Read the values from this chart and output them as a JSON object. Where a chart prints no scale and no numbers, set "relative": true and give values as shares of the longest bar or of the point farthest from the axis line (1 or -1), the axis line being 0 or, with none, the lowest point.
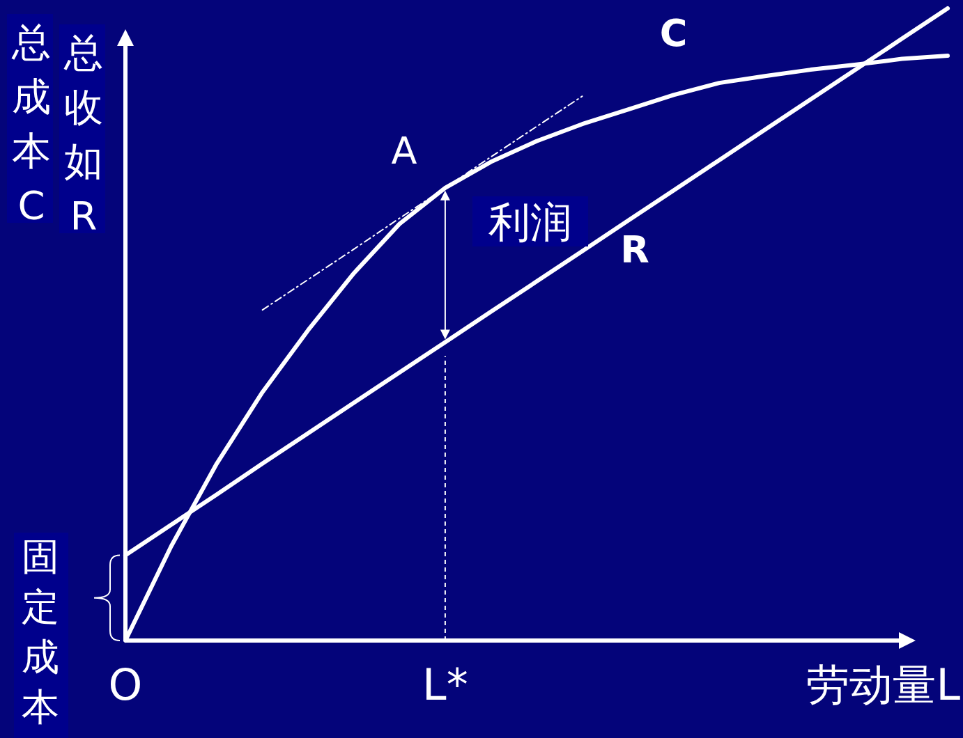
{
  "chart_data": {
    "type": "line",
    "relative": true,
    "xlabel": "劳动量L",
    "categories": [
      "O",
      null,
      null,
      null,
      null,
      null,
      null,
      "L*",
      null,
      null,
      null,
      null,
      null,
      null,
      null,
      null,
      null,
      null,
      null
    ],
    "series": [
      {
        "name": "C",
        "color": "#ffffff",
        "values": [
          0,
          0.149,
          0.28,
          0.393,
          0.491,
          0.581,
          0.659,
          0.716,
          0.757,
          0.79,
          0.817,
          0.84,
          0.863,
          0.882,
          0.893,
          0.903,
          0.911,
          0.92,
          0.925
        ]
      },
      {
        "name": "R",
        "color": "#ffffff",
        "values": [
          0.135,
          0.183,
          0.231,
          0.28,
          0.328,
          0.376,
          0.424,
          0.472,
          0.52,
          0.568,
          0.616,
          0.664,
          0.712,
          0.76,
          0.808,
          0.856,
          0.904,
          0.952,
          1.0
        ]
      },
      {
        "color": "#ffffff",
        "line_style": "dotted",
        "values": [
          null,
          null,
          null,
          0.523,
          0.571,
          0.619,
          0.668,
          0.716,
          0.765,
          0.813,
          0.861,
          null,
          null,
          null,
          null,
          null,
          null,
          null,
          null
        ]
      }
    ],
    "ref_lines": [
      {
        "axis": "x",
        "value": "L*",
        "line_style": "dashed",
        "color": "#ffffff"
      }
    ],
    "annotations": [
      "总成本C",
      "总收如R",
      "A",
      "利润",
      "固定成本"
    ],
    "legend": false
  }
}
